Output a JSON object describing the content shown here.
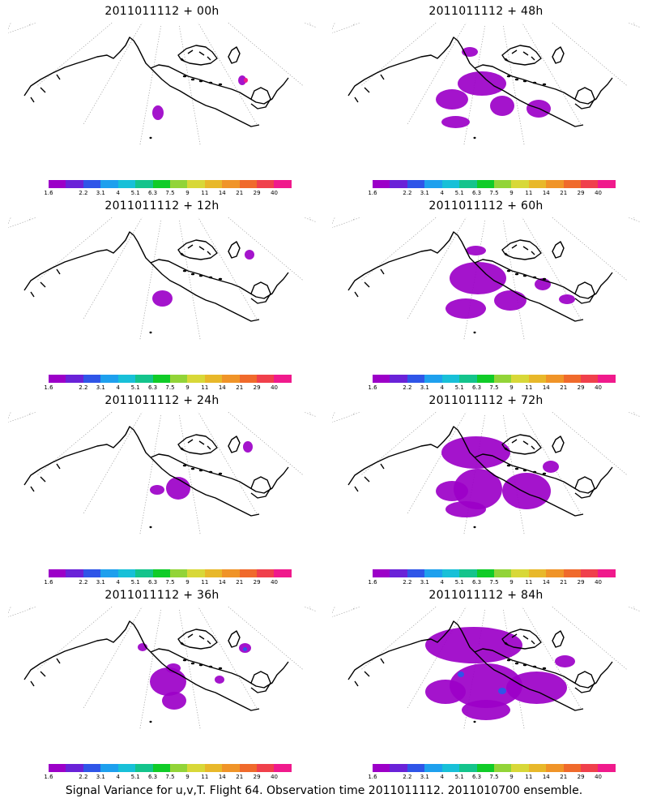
{
  "panels": [
    {
      "title": "2011011112 + 00h",
      "col": 0,
      "row": 0,
      "blobs": [
        [
          178,
          102,
          14,
          18
        ],
        [
          284,
          65,
          10,
          12
        ]
      ],
      "blue": [],
      "pink": [
        [
          291,
          68,
          5,
          6
        ]
      ]
    },
    {
      "title": "2011011112 + 48h",
      "col": 1,
      "row": 0,
      "blobs": [
        [
          155,
          60,
          60,
          30
        ],
        [
          128,
          82,
          40,
          25
        ],
        [
          195,
          90,
          30,
          25
        ],
        [
          240,
          95,
          30,
          22
        ],
        [
          135,
          115,
          35,
          15
        ],
        [
          160,
          30,
          20,
          12
        ]
      ],
      "blue": [],
      "pink": []
    },
    {
      "title": "2011011112 + 12h",
      "col": 0,
      "row": 1,
      "blobs": [
        [
          178,
          90,
          25,
          20
        ],
        [
          292,
          40,
          12,
          12
        ]
      ],
      "blue": [],
      "pink": []
    },
    {
      "title": "2011011112 + 60h",
      "col": 1,
      "row": 1,
      "blobs": [
        [
          145,
          55,
          70,
          40
        ],
        [
          140,
          100,
          50,
          25
        ],
        [
          200,
          90,
          40,
          25
        ],
        [
          250,
          75,
          20,
          15
        ],
        [
          165,
          35,
          25,
          12
        ],
        [
          280,
          95,
          20,
          12
        ]
      ],
      "blue": [],
      "pink": []
    },
    {
      "title": "2011011112 + 24h",
      "col": 0,
      "row": 2,
      "blobs": [
        [
          195,
          80,
          30,
          28
        ],
        [
          175,
          90,
          18,
          12
        ],
        [
          290,
          36,
          12,
          14
        ]
      ],
      "blue": [],
      "pink": []
    },
    {
      "title": "2011011112 + 72h",
      "col": 1,
      "row": 2,
      "blobs": [
        [
          135,
          30,
          85,
          40
        ],
        [
          150,
          70,
          60,
          50
        ],
        [
          128,
          85,
          40,
          25
        ],
        [
          210,
          75,
          60,
          45
        ],
        [
          260,
          60,
          20,
          15
        ],
        [
          140,
          110,
          50,
          20
        ]
      ],
      "blue": [],
      "pink": []
    },
    {
      "title": "2011011112 + 36h",
      "col": 0,
      "row": 3,
      "blobs": [
        [
          175,
          75,
          45,
          35
        ],
        [
          190,
          105,
          30,
          22
        ],
        [
          160,
          45,
          12,
          10
        ],
        [
          195,
          70,
          18,
          12
        ],
        [
          285,
          45,
          15,
          12
        ],
        [
          255,
          85,
          12,
          10
        ]
      ],
      "blue": [
        [
          290,
          50,
          5,
          5
        ]
      ],
      "pink": []
    },
    {
      "title": "2011011112 + 84h",
      "col": 1,
      "row": 3,
      "blobs": [
        [
          115,
          25,
          120,
          45
        ],
        [
          145,
          70,
          90,
          55
        ],
        [
          115,
          90,
          50,
          30
        ],
        [
          215,
          80,
          75,
          40
        ],
        [
          275,
          60,
          25,
          15
        ],
        [
          160,
          115,
          60,
          25
        ]
      ],
      "blue": [
        [
          155,
          80,
          8,
          7
        ],
        [
          205,
          100,
          10,
          8
        ]
      ],
      "pink": []
    }
  ],
  "colorbar": {
    "colors": [
      "#9c00c8",
      "#6a22d8",
      "#2f55e8",
      "#1ea0ee",
      "#18c0d8",
      "#14c48c",
      "#10cc28",
      "#92d438",
      "#d8d838",
      "#e8b82a",
      "#f09428",
      "#f06a2c",
      "#f0404c",
      "#f01a8c"
    ],
    "labels": [
      "1.6",
      "2.2",
      "3.1",
      "4",
      "5.1",
      "6.3",
      "7.5",
      "9",
      "11",
      "14",
      "21",
      "29",
      "40"
    ]
  },
  "footer": "Signal Variance for u,v,T. Flight 64. Observation time 2011011112. 2011010700 ensemble."
}
